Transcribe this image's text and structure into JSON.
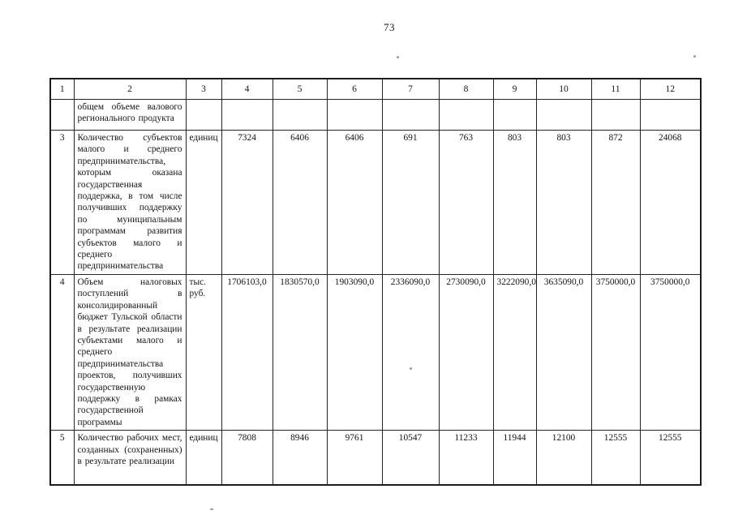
{
  "page": {
    "number": "73"
  },
  "table": {
    "header": [
      "1",
      "2",
      "3",
      "4",
      "5",
      "6",
      "7",
      "8",
      "9",
      "10",
      "11",
      "12"
    ],
    "rows": [
      {
        "num": "",
        "name": "общем объеме валового регионального продукта",
        "unit": "",
        "values": [
          "",
          "",
          "",
          "",
          "",
          "",
          "",
          "",
          ""
        ]
      },
      {
        "num": "3",
        "name": "Количество субъектов малого и среднего предпринимательства, которым оказана государственная поддержка, в том числе получивших поддержку по муниципальным программам развития субъектов малого и среднего предпринимательства",
        "unit": "единиц",
        "values": [
          "7324",
          "6406",
          "6406",
          "691",
          "763",
          "803",
          "803",
          "872",
          "24068"
        ]
      },
      {
        "num": "4",
        "name": "Объем налоговых поступлений в консолидированный бюджет Тульской области в результате реализации субъектами малого и среднего предпринимательства проектов, получивших государственную поддержку в рамках государственной программы",
        "unit": "тыс. руб.",
        "values": [
          "1706103,0",
          "1830570,0",
          "1903090,0",
          "2336090,0",
          "2730090,0",
          "3222090,0",
          "3635090,0",
          "3750000,0",
          "3750000,0"
        ]
      },
      {
        "num": "5",
        "name": "Количество рабочих мест, созданных (сохраненных) в результате реализации",
        "unit": "единиц",
        "values": [
          "7808",
          "8946",
          "9761",
          "10547",
          "11233",
          "11944",
          "12100",
          "12555",
          "12555"
        ]
      }
    ]
  }
}
